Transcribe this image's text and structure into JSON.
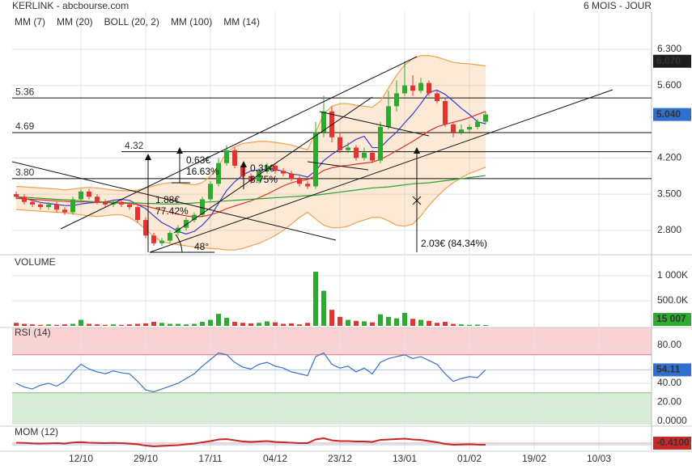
{
  "chart_data": [
    {
      "type": "candlestick",
      "title": "KERLINK - abcbourse.com",
      "subtitle": "6 MOIS - JOUR",
      "categories": [
        null,
        null,
        null,
        null,
        null,
        null,
        null,
        null,
        "12/10",
        null,
        null,
        null,
        null,
        null,
        null,
        null,
        "29/10",
        null,
        null,
        null,
        null,
        null,
        null,
        null,
        "17/11",
        null,
        null,
        null,
        null,
        null,
        null,
        null,
        "04/12",
        null,
        null,
        null,
        null,
        null,
        null,
        null,
        "23/12",
        null,
        null,
        null,
        null,
        null,
        null,
        null,
        "13/01",
        null,
        null,
        null,
        null,
        null,
        null,
        null,
        "01/02",
        null,
        null,
        null,
        null,
        null,
        null,
        null,
        "19/02",
        null,
        null,
        null,
        null,
        null,
        null,
        null,
        "10/03",
        null,
        null,
        null,
        null,
        null,
        null
      ],
      "open": [
        3.5,
        3.45,
        3.35,
        3.3,
        3.25,
        3.3,
        3.2,
        3.15,
        3.4,
        3.55,
        3.45,
        3.35,
        3.3,
        3.35,
        3.3,
        3.25,
        3.0,
        2.7,
        2.55,
        2.6,
        2.75,
        2.85,
        3.0,
        3.1,
        3.4,
        3.7,
        4.1,
        4.35,
        4.05,
        3.85,
        3.75,
        3.95,
        4.05,
        3.95,
        3.9,
        3.8,
        3.7,
        3.65,
        4.7,
        5.1,
        4.6,
        4.35,
        4.4,
        4.2,
        4.3,
        4.15,
        4.8,
        5.2,
        5.45,
        5.6,
        5.5,
        5.65,
        5.45,
        5.3,
        4.85,
        4.7,
        4.75,
        4.8,
        4.9,
        null,
        null,
        null,
        null,
        null,
        null,
        null,
        null,
        null,
        null,
        null,
        null,
        null,
        null,
        null,
        null,
        null,
        null,
        null,
        null
      ],
      "high": [
        3.55,
        3.5,
        3.4,
        3.35,
        3.35,
        3.35,
        3.25,
        3.45,
        3.6,
        3.6,
        3.5,
        3.4,
        3.4,
        3.4,
        3.35,
        3.3,
        3.05,
        2.75,
        2.65,
        2.8,
        2.9,
        3.05,
        3.15,
        3.45,
        3.75,
        4.2,
        4.45,
        4.4,
        4.1,
        3.9,
        4.0,
        4.1,
        4.1,
        4.0,
        3.95,
        3.85,
        3.75,
        4.9,
        5.4,
        5.2,
        4.7,
        4.5,
        4.45,
        4.4,
        4.35,
        4.9,
        5.5,
        5.7,
        6.07,
        5.8,
        5.75,
        5.7,
        5.5,
        5.35,
        4.9,
        4.85,
        4.85,
        4.95,
        5.1,
        null,
        null,
        null,
        null,
        null,
        null,
        null,
        null,
        null,
        null,
        null,
        null,
        null,
        null,
        null,
        null,
        null,
        null,
        null,
        null
      ],
      "low": [
        3.4,
        3.3,
        3.25,
        3.2,
        3.2,
        3.15,
        3.1,
        3.1,
        3.35,
        3.4,
        3.3,
        3.25,
        3.25,
        3.25,
        3.2,
        2.95,
        2.65,
        2.5,
        2.5,
        2.55,
        2.7,
        2.8,
        2.95,
        3.05,
        3.35,
        3.65,
        4.05,
        4.0,
        3.8,
        3.7,
        3.7,
        3.9,
        3.9,
        3.85,
        3.75,
        3.65,
        3.6,
        3.6,
        4.6,
        4.5,
        4.3,
        4.3,
        4.15,
        4.15,
        4.1,
        4.1,
        4.75,
        5.1,
        5.4,
        5.4,
        5.45,
        5.4,
        5.25,
        4.8,
        4.6,
        4.65,
        4.7,
        4.75,
        4.85,
        null,
        null,
        null,
        null,
        null,
        null,
        null,
        null,
        null,
        null,
        null,
        null,
        null,
        null,
        null,
        null,
        null,
        null,
        null,
        null
      ],
      "close": [
        3.45,
        3.35,
        3.3,
        3.25,
        3.3,
        3.2,
        3.15,
        3.4,
        3.55,
        3.45,
        3.35,
        3.3,
        3.35,
        3.3,
        3.25,
        3.0,
        2.7,
        2.55,
        2.6,
        2.75,
        2.85,
        3.0,
        3.1,
        3.4,
        3.7,
        4.1,
        4.35,
        4.05,
        3.85,
        3.75,
        3.95,
        4.05,
        3.95,
        3.9,
        3.8,
        3.7,
        3.65,
        4.7,
        5.1,
        4.6,
        4.35,
        4.4,
        4.2,
        4.3,
        4.15,
        4.8,
        5.2,
        5.45,
        5.6,
        5.5,
        5.65,
        5.45,
        5.3,
        4.85,
        4.7,
        4.75,
        4.8,
        4.9,
        5.04,
        null,
        null,
        null,
        null,
        null,
        null,
        null,
        null,
        null,
        null,
        null,
        null,
        null,
        null,
        null,
        null,
        null,
        null,
        null,
        null
      ],
      "up_color": "#2eaa2e",
      "down_color": "#e8322f",
      "series": [
        {
          "name": "MM (7)",
          "color": "#3a3acf",
          "values": [
            3.45,
            3.42,
            3.38,
            3.34,
            3.32,
            3.3,
            3.28,
            3.28,
            3.31,
            3.33,
            3.34,
            3.35,
            3.38,
            3.4,
            3.38,
            3.3,
            3.22,
            3.08,
            2.95,
            2.87,
            2.78,
            2.73,
            2.78,
            2.9,
            3.07,
            3.32,
            3.57,
            3.74,
            3.87,
            3.95,
            3.97,
            3.98,
            3.98,
            3.94,
            3.89,
            3.87,
            3.83,
            3.95,
            4.15,
            4.27,
            4.37,
            4.46,
            4.56,
            4.62,
            4.4,
            4.4,
            4.56,
            4.7,
            4.88,
            5.05,
            5.25,
            5.47,
            5.51,
            5.43,
            5.3,
            5.16,
            5.04,
            4.9,
            4.86,
            null,
            null,
            null,
            null,
            null,
            null,
            null,
            null,
            null,
            null,
            null,
            null,
            null,
            null,
            null,
            null,
            null,
            null,
            null,
            null
          ]
        },
        {
          "name": "MM (20)",
          "color": "#e0302a",
          "values": [
            3.42,
            3.41,
            3.4,
            3.39,
            3.38,
            3.37,
            3.36,
            3.35,
            3.35,
            3.35,
            3.34,
            3.34,
            3.33,
            3.33,
            3.32,
            3.3,
            3.27,
            3.23,
            3.19,
            3.15,
            3.11,
            3.08,
            3.06,
            3.07,
            3.1,
            3.15,
            3.22,
            3.27,
            3.32,
            3.37,
            3.43,
            3.5,
            3.58,
            3.66,
            3.72,
            3.76,
            3.78,
            3.86,
            3.96,
            4.01,
            4.04,
            4.06,
            4.08,
            4.1,
            4.12,
            4.17,
            4.25,
            4.34,
            4.43,
            4.52,
            4.62,
            4.72,
            4.8,
            4.85,
            4.89,
            4.93,
            4.98,
            5.04,
            5.1,
            null,
            null,
            null,
            null,
            null,
            null,
            null,
            null,
            null,
            null,
            null,
            null,
            null,
            null,
            null,
            null,
            null,
            null,
            null,
            null
          ]
        },
        {
          "name": "BOLL (20, 2)",
          "color": "#f0a04b",
          "values": [
            3.65,
            3.64,
            3.63,
            3.62,
            3.61,
            3.6,
            3.58,
            3.6,
            3.62,
            3.63,
            3.62,
            3.6,
            3.58,
            3.57,
            3.56,
            3.58,
            3.62,
            3.66,
            3.7,
            3.72,
            3.72,
            3.7,
            3.68,
            3.72,
            3.85,
            4.05,
            4.3,
            4.42,
            4.48,
            4.5,
            4.52,
            4.52,
            4.5,
            4.48,
            4.45,
            4.4,
            4.36,
            4.7,
            5.05,
            5.2,
            5.25,
            5.25,
            5.22,
            5.2,
            5.18,
            5.3,
            5.55,
            5.8,
            6.0,
            6.12,
            6.18,
            6.18,
            6.15,
            6.1,
            6.05,
            6.03,
            6.02,
            6.0,
            5.98,
            null,
            null,
            null,
            null,
            null,
            null,
            null,
            null,
            null,
            null,
            null,
            null,
            null,
            null,
            null,
            null,
            null,
            null,
            null,
            null
          ],
          "lower": [
            3.2,
            3.19,
            3.18,
            3.17,
            3.16,
            3.15,
            3.14,
            3.12,
            3.1,
            3.08,
            3.07,
            3.08,
            3.1,
            3.1,
            3.05,
            2.95,
            2.82,
            2.68,
            2.58,
            2.55,
            2.52,
            2.5,
            2.48,
            2.46,
            2.45,
            2.44,
            2.42,
            2.42,
            2.45,
            2.5,
            2.55,
            2.62,
            2.7,
            2.8,
            2.92,
            3.05,
            3.15,
            3.02,
            2.9,
            2.85,
            2.85,
            2.88,
            2.95,
            3.0,
            3.05,
            3.05,
            2.98,
            2.9,
            2.88,
            2.92,
            3.08,
            3.28,
            3.45,
            3.6,
            3.72,
            3.82,
            3.9,
            3.96,
            4.02,
            null,
            null,
            null,
            null,
            null,
            null,
            null,
            null,
            null,
            null,
            null,
            null,
            null,
            null,
            null,
            null,
            null,
            null,
            null,
            null
          ]
        },
        {
          "name": "MM (100)",
          "color": "#2ca02c",
          "values": [
            3.45,
            3.44,
            3.43,
            3.42,
            3.41,
            3.4,
            3.39,
            3.38,
            3.37,
            3.36,
            3.35,
            3.35,
            3.34,
            3.34,
            3.33,
            3.33,
            3.32,
            3.32,
            3.31,
            3.31,
            3.31,
            3.32,
            3.33,
            3.34,
            3.35,
            3.36,
            3.37,
            3.38,
            3.39,
            3.4,
            3.41,
            3.42,
            3.43,
            3.44,
            3.45,
            3.46,
            3.47,
            3.48,
            3.5,
            3.52,
            3.54,
            3.56,
            3.58,
            3.6,
            3.62,
            3.63,
            3.64,
            3.66,
            3.68,
            3.7,
            3.71,
            3.72,
            3.74,
            3.76,
            3.78,
            3.8,
            3.82,
            3.84,
            3.86,
            null,
            null,
            null,
            null,
            null,
            null,
            null,
            null,
            null,
            null,
            null,
            null,
            null,
            null,
            null,
            null,
            null,
            null,
            null,
            null
          ]
        },
        {
          "name": "MM (14)",
          "color": "#222222"
        }
      ],
      "ylim": [
        2.36,
        7.02
      ],
      "yticks": [
        {
          "value": 2.8,
          "label": "2.800"
        },
        {
          "value": 3.5,
          "label": "3.500"
        },
        {
          "value": 4.2,
          "label": "4.200"
        },
        {
          "value": 5.6,
          "label": "5.600"
        },
        {
          "value": 6.3,
          "label": "6.300"
        }
      ],
      "levels": [
        5.36,
        4.69,
        4.32,
        {
          "value": 3.8,
          "label": "3.80"
        }
      ],
      "annotations": [
        "0.63€",
        "16.63%",
        "1.88€",
        "77.42%",
        "0.31€",
        "8.75%",
        "48°",
        "2.03€ (84.34%)"
      ],
      "markers": [
        {
          "value": 6.07,
          "label": "6.070",
          "color": "#1e1e1e"
        },
        {
          "value": 5.04,
          "label": "5.040",
          "color": "#2f6fd0"
        }
      ],
      "grid": true
    },
    {
      "type": "bar",
      "title": "VOLUME",
      "color": "#2a9a2a",
      "values": [
        60000,
        40000,
        30000,
        20000,
        30000,
        20000,
        30000,
        40000,
        120000,
        40000,
        30000,
        20000,
        30000,
        20000,
        30000,
        40000,
        50000,
        80000,
        60000,
        40000,
        40000,
        30000,
        40000,
        80000,
        120000,
        240000,
        160000,
        80000,
        60000,
        50000,
        60000,
        90000,
        70000,
        40000,
        50000,
        30000,
        60000,
        1080000,
        700000,
        320000,
        180000,
        120000,
        100000,
        90000,
        70000,
        230000,
        180000,
        150000,
        260000,
        140000,
        120000,
        100000,
        60000,
        80000,
        40000,
        30000,
        20000,
        25000,
        15007,
        null,
        null,
        null,
        null,
        null,
        null,
        null,
        null,
        null,
        null,
        null,
        null,
        null,
        null,
        null,
        null,
        null,
        null,
        null,
        null
      ],
      "ylim": [
        0,
        1371000
      ],
      "yticks": [
        {
          "value": 500000,
          "label": "500.0K"
        },
        {
          "value": 1000000,
          "label": "1 000K"
        }
      ],
      "markers": [
        {
          "value": 15007,
          "label": "15 007",
          "color": "#2eaa2e"
        }
      ]
    },
    {
      "type": "line",
      "title": "RSI (14)",
      "color": "#3a6fc8",
      "values": [
        40,
        36,
        34,
        38,
        40,
        37,
        42,
        52,
        60,
        55,
        52,
        50,
        53,
        51,
        50,
        42,
        33,
        31,
        34,
        37,
        40,
        45,
        50,
        58,
        65,
        72,
        70,
        62,
        57,
        55,
        60,
        62,
        58,
        56,
        52,
        50,
        48,
        68,
        72,
        60,
        56,
        58,
        52,
        56,
        50,
        62,
        66,
        68,
        70,
        66,
        68,
        64,
        60,
        50,
        42,
        45,
        47,
        46,
        54.11,
        null,
        null,
        null,
        null,
        null,
        null,
        null,
        null,
        null,
        null,
        null,
        null,
        null,
        null,
        null,
        null,
        null,
        null,
        null,
        null
      ],
      "ylim": [
        -3.4,
        98.7
      ],
      "yticks": [
        {
          "value": 0,
          "label": "0.0000"
        },
        {
          "value": 20,
          "label": "20.00"
        },
        {
          "value": 40,
          "label": "40.00"
        },
        {
          "value": 80,
          "label": "80.00"
        }
      ],
      "zones": [
        {
          "from": 70,
          "to": 98.7,
          "color": "#f9d3d3"
        },
        {
          "from": -3.4,
          "to": 30,
          "color": "#d6ecd6"
        }
      ],
      "markers": [
        {
          "value": 54.11,
          "label": "54.11",
          "color": "#2f6fd0"
        }
      ]
    },
    {
      "type": "line",
      "title": "MOM (12)",
      "color": "#c62828",
      "values": [
        0.1,
        0.05,
        -0.05,
        -0.1,
        -0.05,
        0,
        -0.1,
        0.15,
        0.25,
        0.1,
        0.05,
        0,
        0.05,
        0,
        -0.1,
        -0.3,
        -0.6,
        -0.8,
        -0.7,
        -0.6,
        -0.5,
        -0.3,
        -0.1,
        0.2,
        0.5,
        0.9,
        1.0,
        0.7,
        0.4,
        0.3,
        0.4,
        0.5,
        0.3,
        0.2,
        0.1,
        0,
        0,
        0.9,
        1.2,
        0.7,
        0.5,
        0.5,
        0.4,
        0.4,
        0.3,
        0.8,
        0.9,
        1.0,
        1.1,
        0.9,
        0.8,
        0.5,
        0.2,
        -0.2,
        -0.4,
        -0.35,
        -0.3,
        -0.38,
        -0.41,
        null,
        null,
        null,
        null,
        null,
        null,
        null,
        null,
        null,
        null,
        null,
        null,
        null,
        null,
        null,
        null,
        null,
        null,
        null,
        null
      ],
      "ylim": [
        -1.6,
        4.0
      ],
      "markers": [
        {
          "value": -0.41,
          "label": "-0.4100",
          "color": "#c62828"
        }
      ]
    }
  ]
}
